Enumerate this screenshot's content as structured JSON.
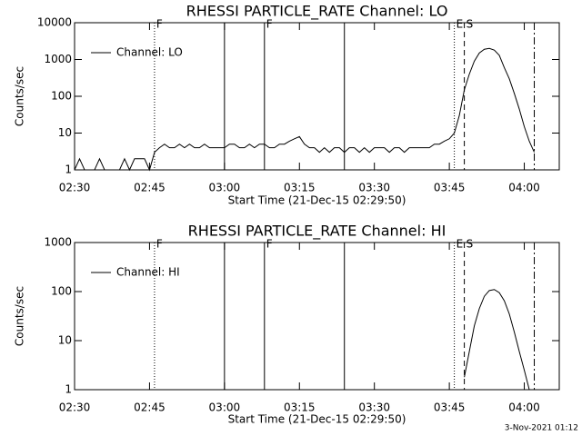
{
  "footer": "3-Nov-2021 01:12",
  "chart_data": [
    {
      "type": "line",
      "title": "RHESSI PARTICLE_RATE Channel: LO",
      "xlabel": "Start Time (21-Dec-15 02:29:50)",
      "ylabel": "Counts/sec",
      "log_y": true,
      "legend": "upper left",
      "xlim": [
        "02:30",
        "04:07"
      ],
      "xticks": [
        "02:30",
        "02:45",
        "03:00",
        "03:15",
        "03:30",
        "03:45",
        "04:00"
      ],
      "ylim": [
        1,
        10000
      ],
      "yticks": [
        1,
        10,
        100,
        1000,
        10000
      ],
      "x": [
        "02:30",
        "02:31",
        "02:32",
        "02:33",
        "02:34",
        "02:35",
        "02:36",
        "02:37",
        "02:38",
        "02:39",
        "02:40",
        "02:41",
        "02:42",
        "02:43",
        "02:44",
        "02:45",
        "02:46",
        "02:47",
        "02:48",
        "02:49",
        "02:50",
        "02:51",
        "02:52",
        "02:53",
        "02:54",
        "02:55",
        "02:56",
        "02:57",
        "02:58",
        "02:59",
        "03:00",
        "03:01",
        "03:02",
        "03:03",
        "03:04",
        "03:05",
        "03:06",
        "03:07",
        "03:08",
        "03:09",
        "03:10",
        "03:11",
        "03:12",
        "03:13",
        "03:14",
        "03:15",
        "03:16",
        "03:17",
        "03:18",
        "03:19",
        "03:20",
        "03:21",
        "03:22",
        "03:23",
        "03:24",
        "03:25",
        "03:26",
        "03:27",
        "03:28",
        "03:29",
        "03:30",
        "03:31",
        "03:32",
        "03:33",
        "03:34",
        "03:35",
        "03:36",
        "03:37",
        "03:38",
        "03:39",
        "03:40",
        "03:41",
        "03:42",
        "03:43",
        "03:44",
        "03:45",
        "03:46",
        "03:47",
        "03:48",
        "03:49",
        "03:50",
        "03:51",
        "03:52",
        "03:53",
        "03:54",
        "03:55",
        "03:56",
        "03:57",
        "03:58",
        "03:59",
        "04:00",
        "04:01",
        "04:02"
      ],
      "series": [
        {
          "name": "Channel: LO",
          "color": "#000000",
          "values": [
            1,
            2,
            1,
            1,
            1,
            2,
            1,
            1,
            1,
            1,
            2,
            1,
            2,
            2,
            2,
            1,
            3,
            4,
            5,
            4,
            4,
            5,
            4,
            5,
            4,
            4,
            5,
            4,
            4,
            4,
            4,
            5,
            5,
            4,
            4,
            5,
            4,
            5,
            5,
            4,
            4,
            5,
            5,
            6,
            7,
            8,
            5,
            4,
            4,
            3,
            4,
            3,
            4,
            4,
            3,
            4,
            4,
            3,
            4,
            3,
            4,
            4,
            4,
            3,
            4,
            4,
            3,
            4,
            4,
            4,
            4,
            4,
            5,
            5,
            6,
            7,
            10,
            30,
            150,
            400,
            900,
            1500,
            1900,
            2000,
            1800,
            1300,
            600,
            300,
            120,
            45,
            15,
            6,
            3
          ]
        }
      ],
      "events": [
        {
          "x": "02:46",
          "dash": "dotted"
        },
        {
          "x": "03:00",
          "dash": "solid"
        },
        {
          "x": "03:08",
          "dash": "solid"
        },
        {
          "x": "03:24",
          "dash": "solid"
        },
        {
          "x": "03:46",
          "dash": "dotted"
        },
        {
          "x": "03:48",
          "dash": "dashed"
        },
        {
          "x": "04:02",
          "dash": "dashdot"
        }
      ],
      "annotations": [
        {
          "text": "F",
          "x": "02:46"
        },
        {
          "text": "F",
          "x": "03:08"
        },
        {
          "text": "E",
          "x": "03:46"
        },
        {
          "text": "S",
          "x": "03:48"
        }
      ]
    },
    {
      "type": "line",
      "title": "RHESSI PARTICLE_RATE Channel: HI",
      "xlabel": "Start Time (21-Dec-15 02:29:50)",
      "ylabel": "Counts/sec",
      "log_y": true,
      "legend": "upper left",
      "xlim": [
        "02:30",
        "04:07"
      ],
      "xticks": [
        "02:30",
        "02:45",
        "03:00",
        "03:15",
        "03:30",
        "03:45",
        "04:00"
      ],
      "ylim": [
        1,
        1000
      ],
      "yticks": [
        1,
        10,
        100,
        1000
      ],
      "x": [
        "03:48",
        "03:49",
        "03:50",
        "03:51",
        "03:52",
        "03:53",
        "03:54",
        "03:55",
        "03:56",
        "03:57",
        "03:58",
        "03:59",
        "04:00",
        "04:01"
      ],
      "series": [
        {
          "name": "Channel: HI",
          "color": "#000000",
          "values": [
            1.8,
            6,
            20,
            45,
            80,
            105,
            110,
            95,
            65,
            35,
            15,
            6,
            2.5,
            1
          ]
        }
      ],
      "events": [
        {
          "x": "02:46",
          "dash": "dotted"
        },
        {
          "x": "03:00",
          "dash": "solid"
        },
        {
          "x": "03:08",
          "dash": "solid"
        },
        {
          "x": "03:24",
          "dash": "solid"
        },
        {
          "x": "03:46",
          "dash": "dotted"
        },
        {
          "x": "03:48",
          "dash": "dashed"
        },
        {
          "x": "04:02",
          "dash": "dashdot"
        }
      ],
      "annotations": [
        {
          "text": "F",
          "x": "02:46"
        },
        {
          "text": "F",
          "x": "03:08"
        },
        {
          "text": "E",
          "x": "03:46"
        },
        {
          "text": "S",
          "x": "03:48"
        }
      ]
    }
  ]
}
